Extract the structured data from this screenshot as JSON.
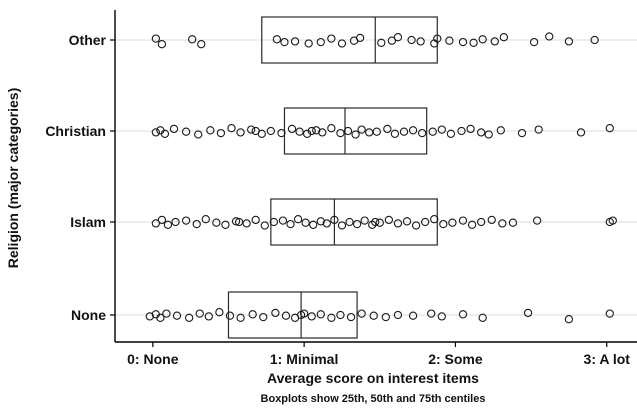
{
  "chart_data": {
    "type": "scatter",
    "subtype": "jittered dot plot with boxplots",
    "xlabel": "Average score on interest items",
    "ylabel": "Religion (major categories)",
    "note": "Boxplots show 25th, 50th and 75th centiles",
    "xlim": [
      -0.25,
      3.2
    ],
    "x_ticks": [
      {
        "value": 0,
        "label": "0: None"
      },
      {
        "value": 1,
        "label": "1: Minimal"
      },
      {
        "value": 2,
        "label": "2: Some"
      },
      {
        "value": 3,
        "label": "3: A lot"
      }
    ],
    "categories": [
      "Other",
      "Christian",
      "Islam",
      "None"
    ],
    "grid": true,
    "boxplots": [
      {
        "category": "Other",
        "q1": 0.72,
        "median": 1.47,
        "q3": 1.88
      },
      {
        "category": "Christian",
        "q1": 0.87,
        "median": 1.27,
        "q3": 1.81
      },
      {
        "category": "Islam",
        "q1": 0.78,
        "median": 1.2,
        "q3": 1.88
      },
      {
        "category": "None",
        "q1": 0.5,
        "median": 0.98,
        "q3": 1.35
      }
    ],
    "points": {
      "Other": [
        [
          0.06,
          0.3
        ],
        [
          0.02,
          -0.1
        ],
        [
          0.32,
          0.3
        ],
        [
          0.26,
          -0.05
        ],
        [
          0.82,
          -0.05
        ],
        [
          0.87,
          0.15
        ],
        [
          0.94,
          0.1
        ],
        [
          1.03,
          0.25
        ],
        [
          1.11,
          0.15
        ],
        [
          1.18,
          -0.1
        ],
        [
          1.33,
          0.05
        ],
        [
          1.37,
          -0.15
        ],
        [
          1.51,
          0.2
        ],
        [
          1.58,
          0.05
        ],
        [
          1.62,
          -0.2
        ],
        [
          1.77,
          0.1
        ],
        [
          1.86,
          0.25
        ],
        [
          1.88,
          -0.1
        ],
        [
          1.96,
          0.05
        ],
        [
          2.05,
          0.15
        ],
        [
          2.12,
          0.2
        ],
        [
          2.18,
          -0.05
        ],
        [
          2.26,
          0.1
        ],
        [
          2.32,
          -0.2
        ],
        [
          2.52,
          0.15
        ],
        [
          2.62,
          -0.25
        ],
        [
          2.75,
          0.1
        ],
        [
          2.92,
          0.0
        ],
        [
          1.71,
          0.0
        ],
        [
          1.25,
          0.25
        ]
      ],
      "Christian": [
        [
          0.02,
          0.1
        ],
        [
          0.05,
          -0.05
        ],
        [
          0.08,
          0.2
        ],
        [
          0.14,
          -0.15
        ],
        [
          0.22,
          0.05
        ],
        [
          0.3,
          0.25
        ],
        [
          0.38,
          -0.05
        ],
        [
          0.45,
          0.15
        ],
        [
          0.52,
          -0.2
        ],
        [
          0.58,
          0.1
        ],
        [
          0.65,
          -0.1
        ],
        [
          0.72,
          0.2
        ],
        [
          0.78,
          0.0
        ],
        [
          0.85,
          0.15
        ],
        [
          0.92,
          -0.15
        ],
        [
          0.97,
          0.05
        ],
        [
          1.02,
          0.2
        ],
        [
          1.08,
          -0.05
        ],
        [
          1.12,
          0.1
        ],
        [
          1.18,
          -0.2
        ],
        [
          1.24,
          0.15
        ],
        [
          1.29,
          0.0
        ],
        [
          1.34,
          0.25
        ],
        [
          1.38,
          -0.1
        ],
        [
          1.43,
          0.1
        ],
        [
          1.48,
          0.05
        ],
        [
          1.55,
          -0.15
        ],
        [
          1.6,
          0.2
        ],
        [
          1.66,
          0.05
        ],
        [
          1.72,
          -0.05
        ],
        [
          1.78,
          0.15
        ],
        [
          1.85,
          0.05
        ],
        [
          1.91,
          -0.1
        ],
        [
          1.97,
          0.2
        ],
        [
          2.04,
          0.0
        ],
        [
          2.1,
          -0.15
        ],
        [
          2.17,
          0.1
        ],
        [
          2.22,
          0.25
        ],
        [
          2.3,
          -0.05
        ],
        [
          2.44,
          0.15
        ],
        [
          2.55,
          -0.1
        ],
        [
          2.83,
          0.1
        ],
        [
          3.02,
          -0.2
        ],
        [
          0.68,
          0.0
        ],
        [
          1.05,
          0.0
        ]
      ],
      "Islam": [
        [
          0.02,
          0.1
        ],
        [
          0.06,
          -0.15
        ],
        [
          0.1,
          0.2
        ],
        [
          0.15,
          0.0
        ],
        [
          0.22,
          -0.1
        ],
        [
          0.29,
          0.15
        ],
        [
          0.35,
          -0.2
        ],
        [
          0.42,
          0.05
        ],
        [
          0.48,
          0.2
        ],
        [
          0.55,
          -0.05
        ],
        [
          0.62,
          0.1
        ],
        [
          0.68,
          -0.15
        ],
        [
          0.74,
          0.25
        ],
        [
          0.8,
          0.0
        ],
        [
          0.86,
          -0.1
        ],
        [
          0.91,
          0.15
        ],
        [
          0.96,
          -0.2
        ],
        [
          1.01,
          0.05
        ],
        [
          1.06,
          0.2
        ],
        [
          1.11,
          -0.05
        ],
        [
          1.15,
          0.1
        ],
        [
          1.2,
          -0.15
        ],
        [
          1.25,
          0.25
        ],
        [
          1.3,
          0.0
        ],
        [
          1.35,
          0.15
        ],
        [
          1.4,
          -0.1
        ],
        [
          1.45,
          0.2
        ],
        [
          1.5,
          0.05
        ],
        [
          1.56,
          -0.15
        ],
        [
          1.62,
          0.1
        ],
        [
          1.68,
          -0.05
        ],
        [
          1.74,
          0.25
        ],
        [
          1.8,
          0.0
        ],
        [
          1.86,
          -0.2
        ],
        [
          1.92,
          0.15
        ],
        [
          1.98,
          0.05
        ],
        [
          2.05,
          -0.1
        ],
        [
          2.11,
          0.2
        ],
        [
          2.17,
          0.0
        ],
        [
          2.24,
          -0.15
        ],
        [
          2.31,
          0.1
        ],
        [
          2.38,
          0.05
        ],
        [
          2.54,
          -0.1
        ],
        [
          3.02,
          0.0
        ],
        [
          3.04,
          -0.1
        ],
        [
          0.57,
          0.0
        ],
        [
          1.47,
          0.0
        ]
      ],
      "None": [
        [
          -0.02,
          0.1
        ],
        [
          0.02,
          -0.05
        ],
        [
          0.05,
          0.2
        ],
        [
          0.09,
          -0.1
        ],
        [
          0.16,
          0.05
        ],
        [
          0.24,
          0.2
        ],
        [
          0.31,
          -0.1
        ],
        [
          0.37,
          0.1
        ],
        [
          0.44,
          -0.2
        ],
        [
          0.51,
          0.05
        ],
        [
          0.58,
          0.2
        ],
        [
          0.66,
          -0.05
        ],
        [
          0.73,
          0.15
        ],
        [
          0.81,
          -0.15
        ],
        [
          0.88,
          0.05
        ],
        [
          0.94,
          0.2
        ],
        [
          1.0,
          -0.1
        ],
        [
          1.05,
          0.1
        ],
        [
          1.11,
          -0.05
        ],
        [
          1.18,
          0.2
        ],
        [
          1.24,
          0.0
        ],
        [
          1.31,
          0.15
        ],
        [
          1.38,
          -0.1
        ],
        [
          1.46,
          0.05
        ],
        [
          1.54,
          0.15
        ],
        [
          1.72,
          0.05
        ],
        [
          1.84,
          -0.1
        ],
        [
          1.91,
          0.1
        ],
        [
          2.05,
          -0.05
        ],
        [
          2.18,
          0.2
        ],
        [
          2.48,
          -0.15
        ],
        [
          2.75,
          0.3
        ],
        [
          3.02,
          -0.1
        ],
        [
          1.62,
          0.0
        ],
        [
          0.98,
          0.0
        ]
      ]
    }
  }
}
